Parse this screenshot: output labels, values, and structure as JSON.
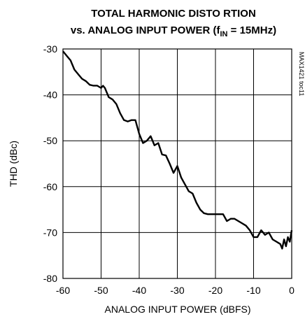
{
  "chart_data": {
    "type": "line",
    "title": "TOTAL HARMONIC DISTO RTION",
    "subtitle_parts": [
      "vs. ANALOG INPUT POWER (f",
      "IN",
      " = 15MHz)"
    ],
    "xlabel": "ANALOG INPUT POWER (dBFS)",
    "ylabel": "THD (dBc)",
    "annotation": "MAX1421 toc11",
    "color": "#000000",
    "grid": true,
    "xlim": [
      -60,
      0
    ],
    "xticks": [
      -60,
      -50,
      -40,
      -30,
      -20,
      -10,
      0
    ],
    "ylim": [
      -80,
      -30
    ],
    "yticks": [
      -80,
      -70,
      -60,
      -50,
      -40,
      -30
    ],
    "x": [
      -60,
      -59,
      -58,
      -57,
      -56,
      -55,
      -54,
      -53,
      -52,
      -51,
      -50,
      -49.5,
      -49,
      -48,
      -47,
      -46,
      -45,
      -44,
      -43,
      -42,
      -41,
      -40.5,
      -40,
      -39,
      -38,
      -37,
      -36,
      -35,
      -34,
      -33,
      -32,
      -31,
      -30,
      -29,
      -28,
      -27,
      -26,
      -25,
      -24,
      -23,
      -22,
      -21,
      -20,
      -19,
      -18,
      -17,
      -16,
      -15,
      -14,
      -13,
      -12,
      -11,
      -10,
      -9,
      -8,
      -7,
      -6,
      -5,
      -4,
      -3,
      -2.5,
      -2,
      -1.5,
      -1,
      -0.5,
      0
    ],
    "values": [
      -30.5,
      -31.5,
      -32.5,
      -34.5,
      -35.5,
      -36.5,
      -37,
      -37.8,
      -38,
      -38,
      -38.5,
      -38,
      -38.5,
      -40.5,
      -41,
      -42,
      -44,
      -45.5,
      -45.8,
      -45.5,
      -45.5,
      -47,
      -48.5,
      -50.5,
      -50,
      -49,
      -51,
      -50.5,
      -53,
      -53.2,
      -55,
      -57,
      -55.5,
      -58,
      -59.5,
      -61,
      -61.5,
      -63.5,
      -65,
      -65.8,
      -66,
      -66,
      -66,
      -66,
      -66,
      -67.5,
      -67,
      -67,
      -67.5,
      -68,
      -68.5,
      -69.5,
      -71,
      -71,
      -69.5,
      -70.5,
      -70,
      -71.5,
      -72,
      -72.5,
      -73.5,
      -71.5,
      -73,
      -71,
      -72,
      -69.5
    ]
  }
}
